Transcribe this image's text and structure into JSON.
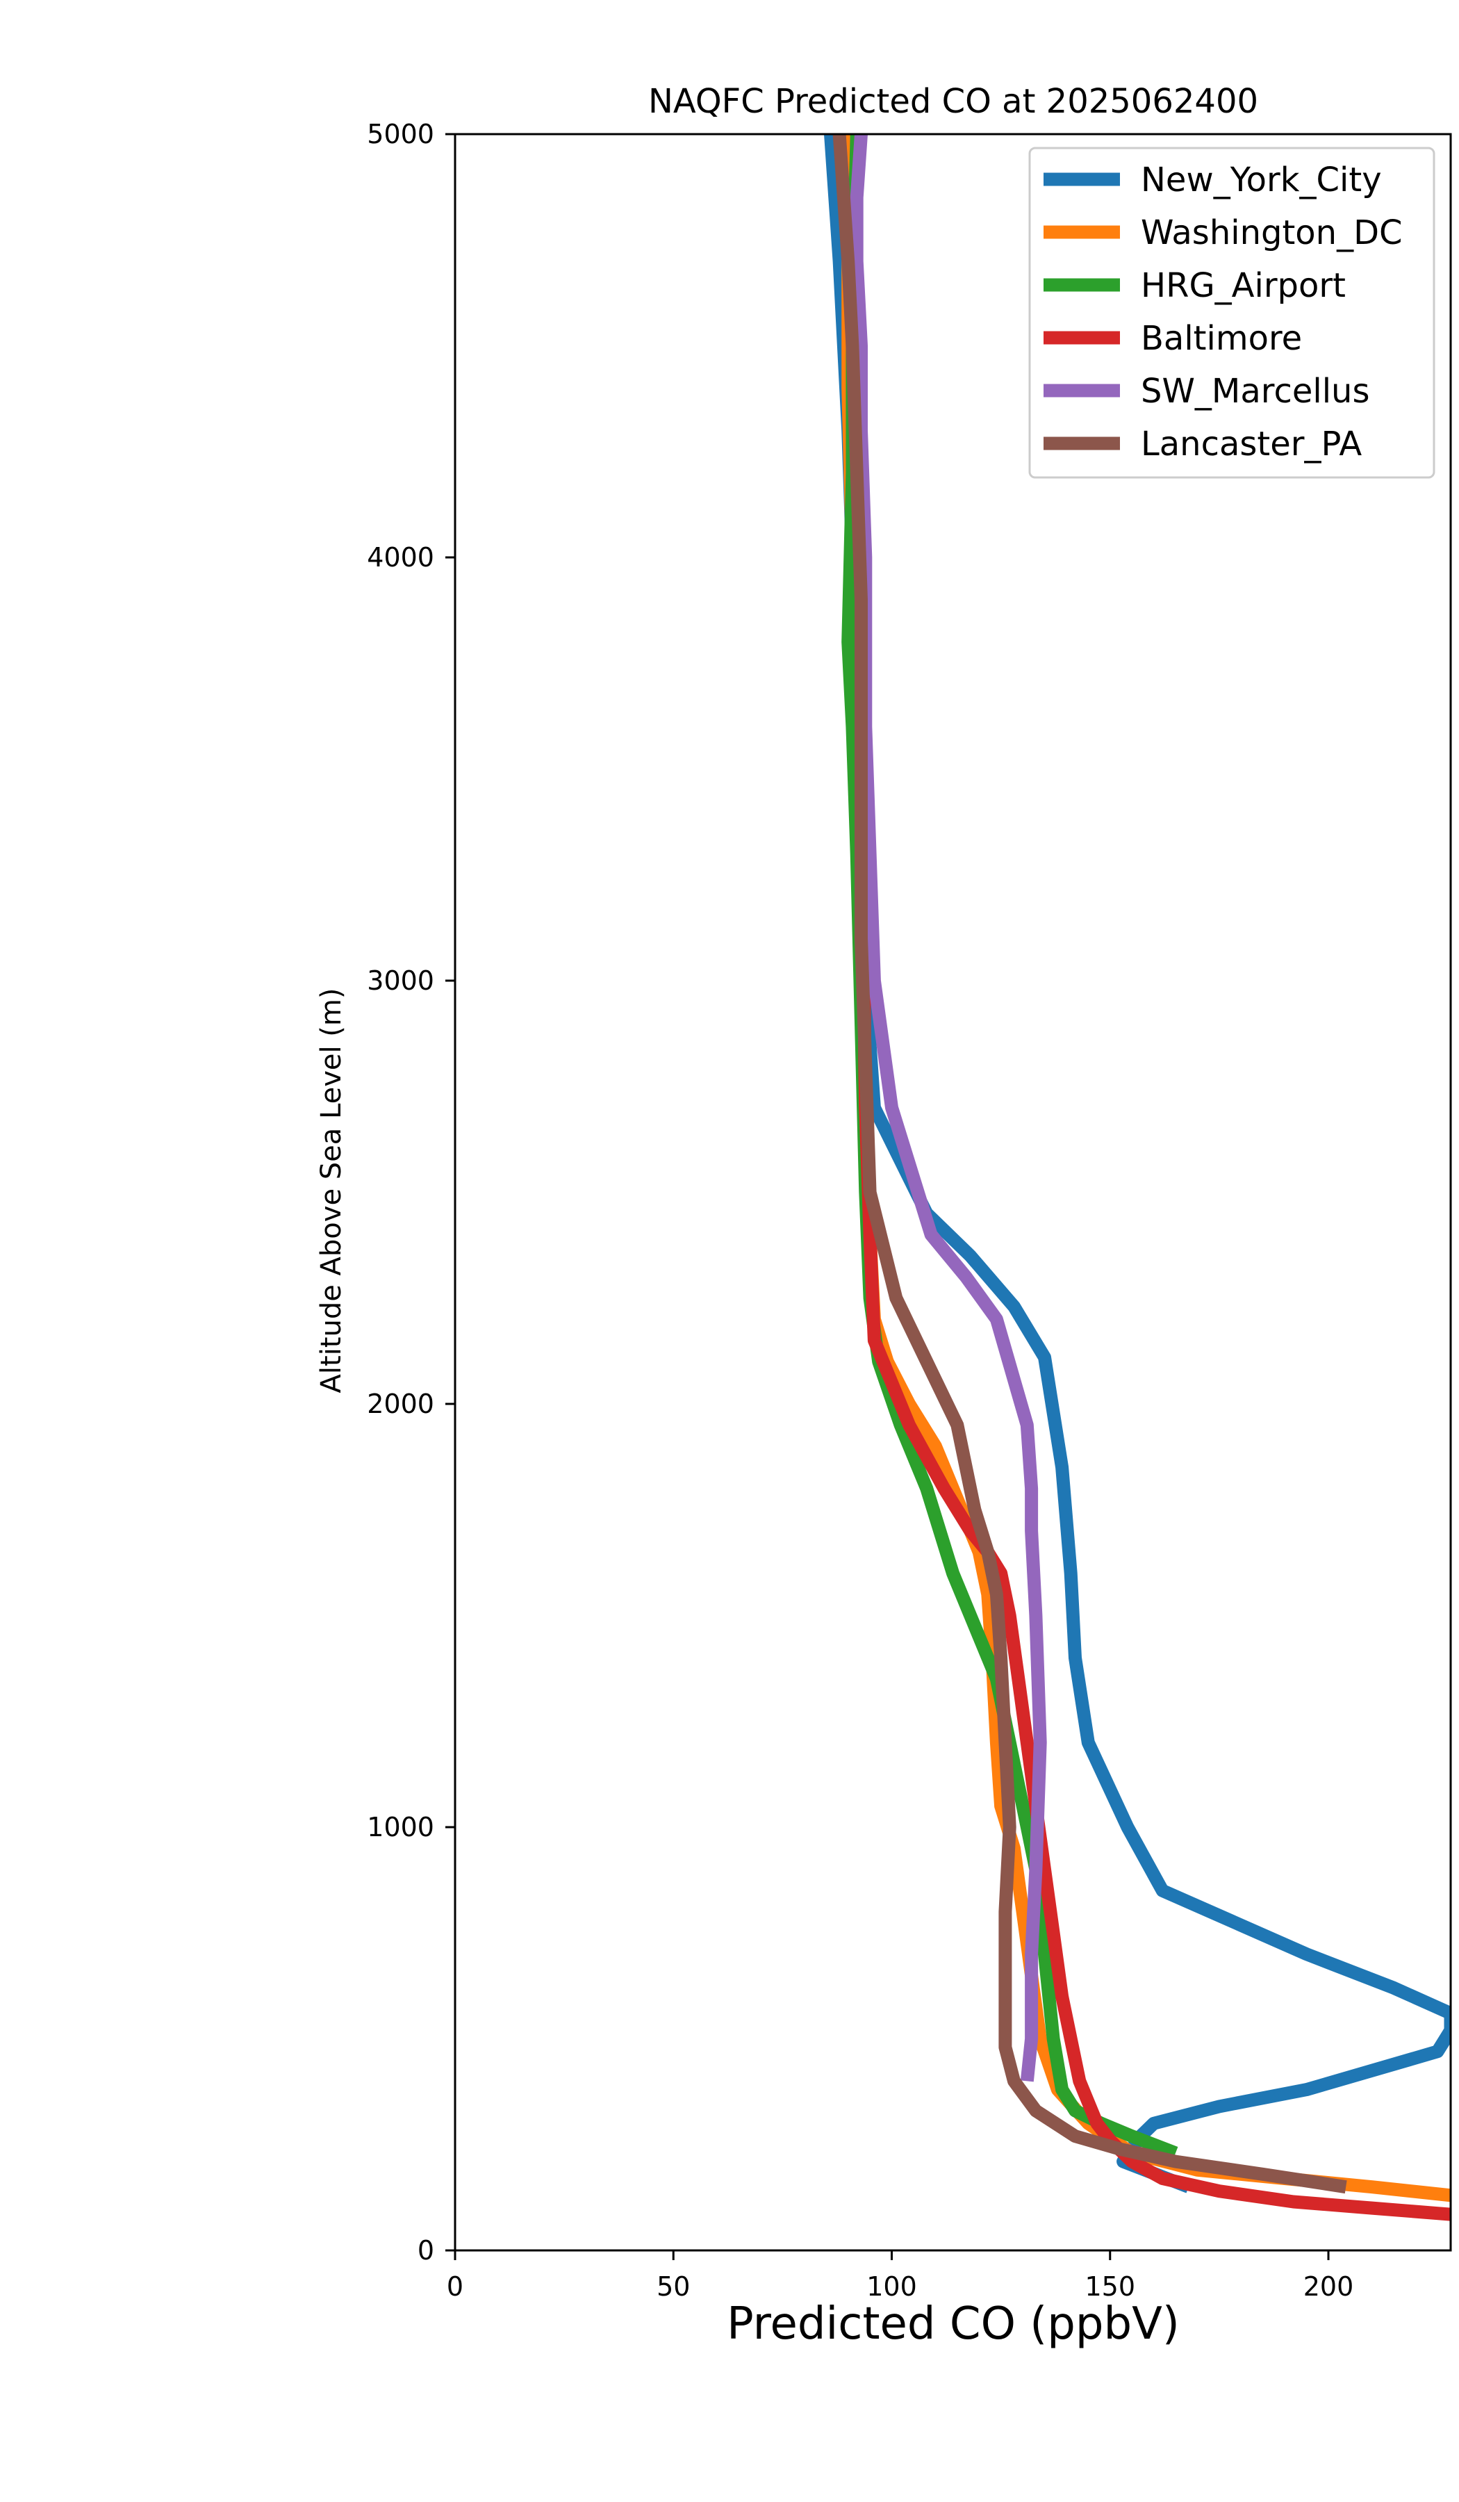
{
  "chart_data": {
    "type": "line",
    "title": "NAQFC Predicted CO at 2025062400",
    "xlabel": "Predicted CO (ppbV)",
    "ylabel": "Altitude Above Sea Level (m)",
    "xlim": [
      0,
      228
    ],
    "ylim": [
      0,
      5000
    ],
    "xticks": [
      0,
      50,
      100,
      150,
      200
    ],
    "yticks": [
      0,
      1000,
      2000,
      3000,
      4000,
      5000
    ],
    "grid": false,
    "legend_position": "upper right",
    "series": [
      {
        "name": "New_York_City",
        "color": "#1f77b4",
        "x": [
          168,
          158,
          153,
          157,
          160,
          175,
          195,
          225,
          228,
          228,
          215,
          195,
          162,
          154,
          145,
          142,
          141,
          139,
          135,
          128,
          118,
          108,
          96,
          94,
          93,
          92,
          91,
          90,
          89,
          88,
          87,
          86
        ],
        "y": [
          150,
          190,
          210,
          270,
          300,
          340,
          380,
          470,
          520,
          560,
          620,
          700,
          850,
          1000,
          1200,
          1400,
          1600,
          1850,
          2110,
          2230,
          2350,
          2450,
          2700,
          3000,
          3500,
          3800,
          4000,
          4300,
          4500,
          4700,
          4850,
          5000
        ]
      },
      {
        "name": "Washington_DC",
        "color": "#ff7f0e",
        "x": [
          228,
          210,
          190,
          170,
          155,
          145,
          138,
          134,
          132,
          130,
          128,
          125,
          124,
          123,
          122,
          120,
          116,
          110,
          104,
          99,
          96,
          95,
          94,
          93,
          92,
          91,
          90,
          90,
          89
        ],
        "y": [
          130,
          150,
          170,
          190,
          230,
          300,
          380,
          500,
          650,
          800,
          950,
          1050,
          1200,
          1400,
          1550,
          1650,
          1750,
          1900,
          2000,
          2100,
          2200,
          2400,
          2700,
          3000,
          3500,
          4000,
          4400,
          4800,
          5000
        ]
      },
      {
        "name": "HRG_Airport",
        "color": "#2ca02c",
        "x": [
          165,
          155,
          148,
          142,
          139,
          137,
          135,
          133,
          130,
          128,
          126,
          124,
          120,
          114,
          108,
          102,
          97,
          95,
          94,
          93,
          92,
          91,
          90,
          91,
          91,
          92
        ],
        "y": [
          230,
          270,
          300,
          330,
          380,
          500,
          700,
          900,
          1050,
          1150,
          1250,
          1350,
          1450,
          1600,
          1800,
          1950,
          2100,
          2250,
          2500,
          2900,
          3300,
          3600,
          3800,
          4200,
          4600,
          5000
        ]
      },
      {
        "name": "Baltimore",
        "color": "#d62728",
        "x": [
          228,
          210,
          192,
          175,
          162,
          155,
          150,
          147,
          145,
          143,
          141,
          139,
          137,
          135,
          133,
          131,
          129,
          127,
          125,
          122,
          118,
          112,
          104,
          96,
          95,
          94,
          93,
          93
        ],
        "y": [
          85,
          100,
          115,
          140,
          170,
          210,
          260,
          300,
          350,
          400,
          500,
          600,
          750,
          900,
          1050,
          1200,
          1350,
          1500,
          1600,
          1650,
          1700,
          1800,
          1950,
          2150,
          2400,
          2700,
          3500,
          4500
        ]
      },
      {
        "name": "SW_Marcellus",
        "color": "#9467bd",
        "x": [
          131,
          132,
          132,
          133,
          134,
          133,
          132,
          132,
          131,
          124,
          117,
          109,
          100,
          96,
          95,
          94,
          94,
          93,
          93,
          92,
          92,
          93
        ],
        "y": [
          400,
          500,
          700,
          900,
          1200,
          1500,
          1700,
          1800,
          1950,
          2200,
          2300,
          2400,
          2700,
          3000,
          3300,
          3600,
          4000,
          4300,
          4500,
          4700,
          4850,
          5000
        ]
      },
      {
        "name": "Lancaster_PA",
        "color": "#8c564b",
        "x": [
          204,
          185,
          165,
          152,
          142,
          133,
          128,
          126,
          126,
          126,
          127,
          126,
          125,
          124,
          122,
          119,
          115,
          108,
          101,
          95,
          94,
          93,
          93,
          93,
          92,
          91,
          90,
          89,
          88,
          87
        ],
        "y": [
          150,
          180,
          210,
          240,
          270,
          330,
          400,
          480,
          600,
          800,
          1000,
          1200,
          1400,
          1550,
          1650,
          1750,
          1950,
          2100,
          2250,
          2500,
          2800,
          3100,
          3500,
          3900,
          4200,
          4500,
          4700,
          4850,
          5000,
          5000
        ]
      }
    ]
  }
}
